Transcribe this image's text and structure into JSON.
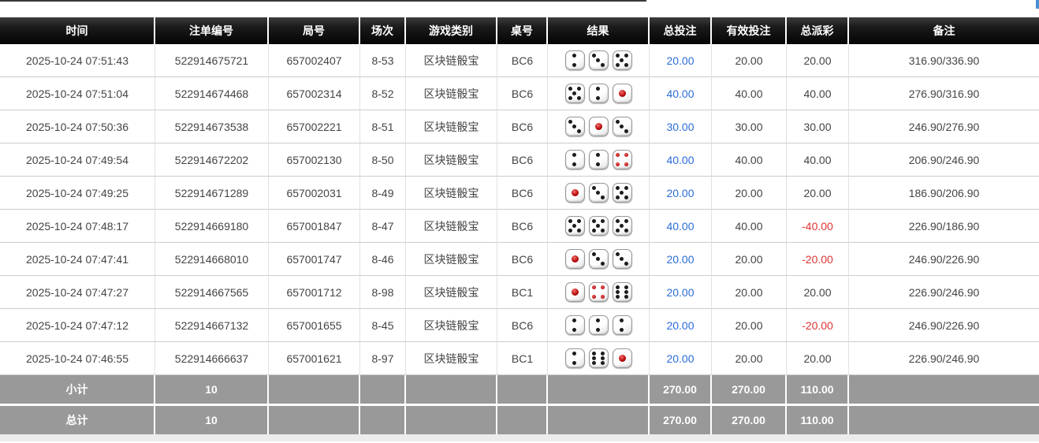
{
  "colors": {
    "header_bg": "#141414",
    "footer_bg": "#999999",
    "bet_link_blue": "#2b6cd8",
    "negative_red": "#e03333",
    "dice_pip_red": "#bb0a0a"
  },
  "header": {
    "columns": [
      "时间",
      "注单编号",
      "局号",
      "场次",
      "游戏类别",
      "桌号",
      "结果",
      "总投注",
      "有效投注",
      "总派彩",
      "备注"
    ]
  },
  "rows": [
    {
      "time": "2025-10-24 07:51:43",
      "order_no": "522914675721",
      "round_no": "657002407",
      "session": "8-53",
      "game": "区块链骰宝",
      "table_no": "BC6",
      "dice": [
        2,
        3,
        5
      ],
      "total_bet": "20.00",
      "valid_bet": "20.00",
      "payout": "20.00",
      "remark": "316.90/336.90"
    },
    {
      "time": "2025-10-24 07:51:04",
      "order_no": "522914674468",
      "round_no": "657002314",
      "session": "8-52",
      "game": "区块链骰宝",
      "table_no": "BC6",
      "dice": [
        5,
        2,
        1
      ],
      "total_bet": "40.00",
      "valid_bet": "40.00",
      "payout": "40.00",
      "remark": "276.90/316.90"
    },
    {
      "time": "2025-10-24 07:50:36",
      "order_no": "522914673538",
      "round_no": "657002221",
      "session": "8-51",
      "game": "区块链骰宝",
      "table_no": "BC6",
      "dice": [
        3,
        1,
        3
      ],
      "total_bet": "30.00",
      "valid_bet": "30.00",
      "payout": "30.00",
      "remark": "246.90/276.90"
    },
    {
      "time": "2025-10-24 07:49:54",
      "order_no": "522914672202",
      "round_no": "657002130",
      "session": "8-50",
      "game": "区块链骰宝",
      "table_no": "BC6",
      "dice": [
        2,
        2,
        4
      ],
      "total_bet": "40.00",
      "valid_bet": "40.00",
      "payout": "40.00",
      "remark": "206.90/246.90"
    },
    {
      "time": "2025-10-24 07:49:25",
      "order_no": "522914671289",
      "round_no": "657002031",
      "session": "8-49",
      "game": "区块链骰宝",
      "table_no": "BC6",
      "dice": [
        1,
        3,
        5
      ],
      "total_bet": "20.00",
      "valid_bet": "20.00",
      "payout": "20.00",
      "remark": "186.90/206.90"
    },
    {
      "time": "2025-10-24 07:48:17",
      "order_no": "522914669180",
      "round_no": "657001847",
      "session": "8-47",
      "game": "区块链骰宝",
      "table_no": "BC6",
      "dice": [
        5,
        5,
        5
      ],
      "total_bet": "40.00",
      "valid_bet": "40.00",
      "payout": "-40.00",
      "remark": "226.90/186.90"
    },
    {
      "time": "2025-10-24 07:47:41",
      "order_no": "522914668010",
      "round_no": "657001747",
      "session": "8-46",
      "game": "区块链骰宝",
      "table_no": "BC6",
      "dice": [
        1,
        3,
        3
      ],
      "total_bet": "20.00",
      "valid_bet": "20.00",
      "payout": "-20.00",
      "remark": "246.90/226.90"
    },
    {
      "time": "2025-10-24 07:47:27",
      "order_no": "522914667565",
      "round_no": "657001712",
      "session": "8-98",
      "game": "区块链骰宝",
      "table_no": "BC1",
      "dice": [
        1,
        4,
        6
      ],
      "total_bet": "20.00",
      "valid_bet": "20.00",
      "payout": "20.00",
      "remark": "226.90/246.90"
    },
    {
      "time": "2025-10-24 07:47:12",
      "order_no": "522914667132",
      "round_no": "657001655",
      "session": "8-45",
      "game": "区块链骰宝",
      "table_no": "BC6",
      "dice": [
        2,
        2,
        2
      ],
      "total_bet": "20.00",
      "valid_bet": "20.00",
      "payout": "-20.00",
      "remark": "246.90/226.90"
    },
    {
      "time": "2025-10-24 07:46:55",
      "order_no": "522914666637",
      "round_no": "657001621",
      "session": "8-97",
      "game": "区块链骰宝",
      "table_no": "BC1",
      "dice": [
        2,
        6,
        1
      ],
      "total_bet": "20.00",
      "valid_bet": "20.00",
      "payout": "20.00",
      "remark": "226.90/246.90"
    }
  ],
  "footer": {
    "subtotal": {
      "label": "小计",
      "count": "10",
      "total_bet": "270.00",
      "valid_bet": "270.00",
      "payout": "110.00"
    },
    "total": {
      "label": "总计",
      "count": "10",
      "total_bet": "270.00",
      "valid_bet": "270.00",
      "payout": "110.00"
    }
  }
}
